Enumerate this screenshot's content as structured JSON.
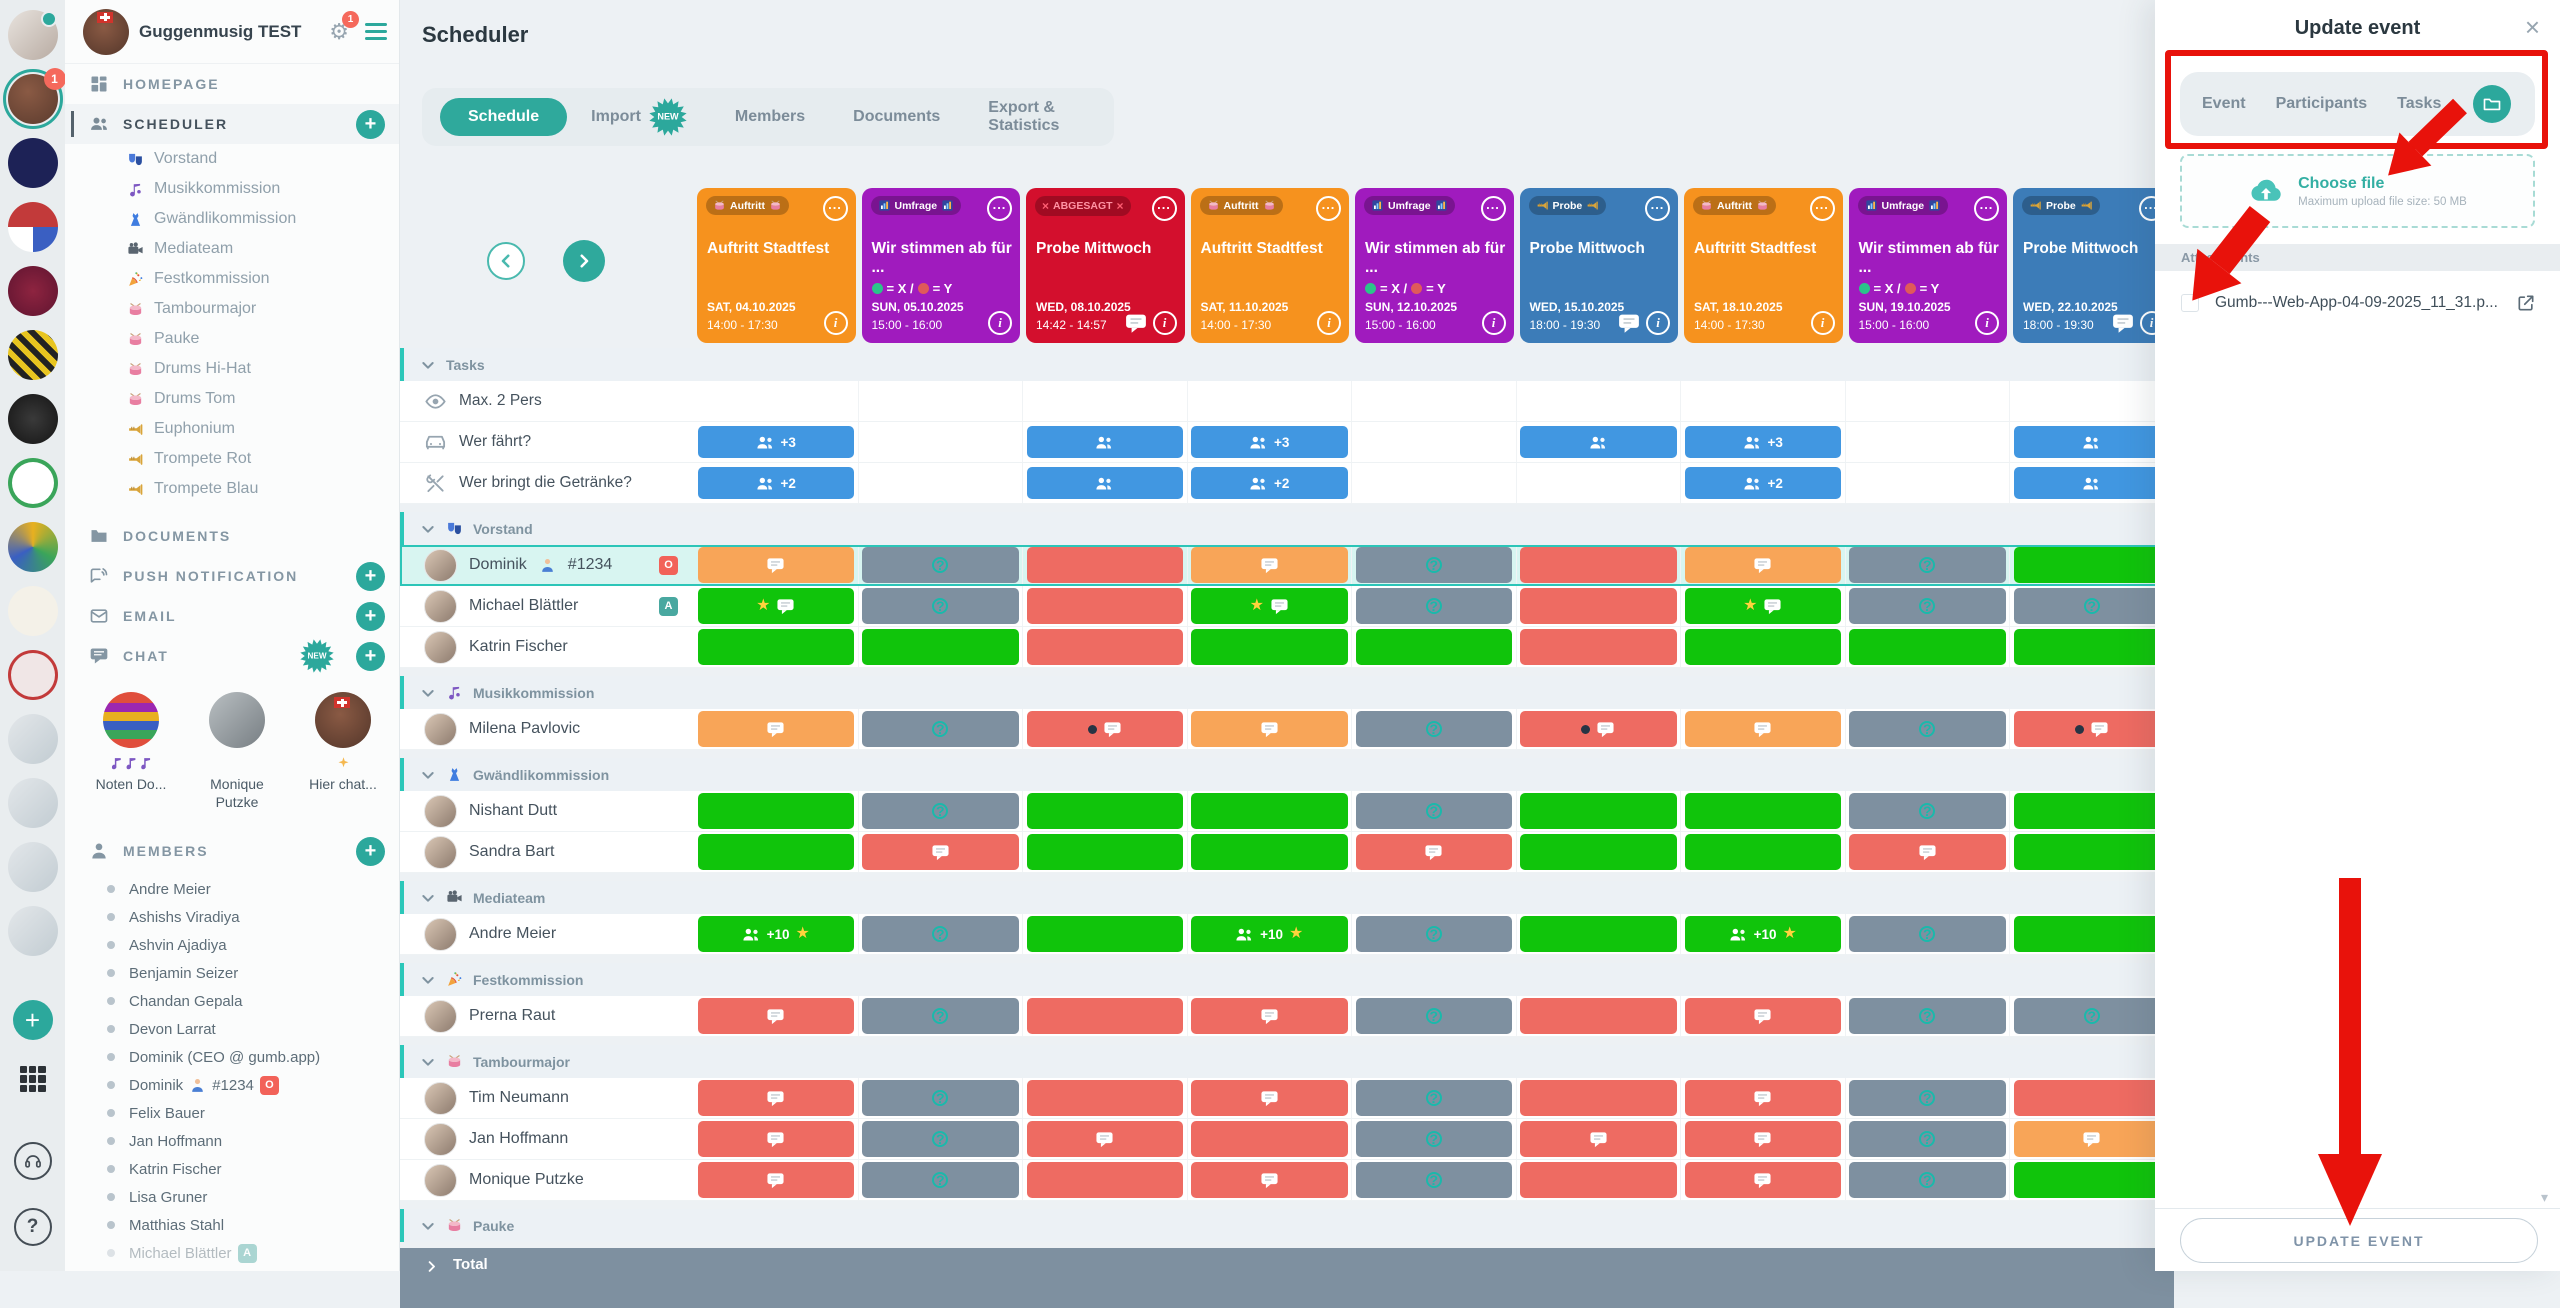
{
  "colors": {
    "accent_teal": "#2CA89C",
    "highlight_teal": "#2CC5B8",
    "annotation_red": "#E8120B",
    "card_orange": "#F6921E",
    "card_purple": "#A01BBE",
    "card_red": "#D30F2D",
    "card_blue": "#3C7CB8",
    "cell_green": "#10C40B",
    "cell_orange": "#F8A558",
    "cell_red": "#EE6B62",
    "cell_slate": "#7E90A0",
    "task_blue": "#4197E1",
    "total_bar": "#7E90A0"
  },
  "left_rail": {
    "workspace_badge_count": "1",
    "bottom_icons": [
      "add",
      "apps",
      "support",
      "help"
    ],
    "help_label": "?"
  },
  "sidebar": {
    "title": "Guggenmusig TEST",
    "notification_count": "1",
    "nav": {
      "homepage": "HOMEPAGE",
      "scheduler": "SCHEDULER",
      "documents": "DOCUMENTS",
      "push": "PUSH NOTIFICATION",
      "email": "EMAIL",
      "chat": "CHAT",
      "members": "MEMBERS"
    },
    "chat_new_badge": "NEW",
    "scheduler_groups": [
      {
        "label": "Vorstand",
        "icon": "masks"
      },
      {
        "label": "Musikkommission",
        "icon": "note"
      },
      {
        "label": "Gwändlikommission",
        "icon": "dress"
      },
      {
        "label": "Mediateam",
        "icon": "camera"
      },
      {
        "label": "Festkommission",
        "icon": "party"
      },
      {
        "label": "Tambourmajor",
        "icon": "drum"
      },
      {
        "label": "Pauke",
        "icon": "drum"
      },
      {
        "label": "Drums Hi-Hat",
        "icon": "drum"
      },
      {
        "label": "Drums Tom",
        "icon": "drum"
      },
      {
        "label": "Euphonium",
        "icon": "trumpet"
      },
      {
        "label": "Trompete Rot",
        "icon": "trumpet"
      },
      {
        "label": "Trompete Blau",
        "icon": "trumpet"
      }
    ],
    "chats": [
      {
        "name": "Noten Do...",
        "icon": "notes3",
        "avatar": "mosaic"
      },
      {
        "name": "Monique Putzke",
        "icon": "",
        "avatar": "photo"
      },
      {
        "name": "Hier chat...",
        "icon": "sparkle",
        "avatar": "clubimg"
      }
    ],
    "members": [
      {
        "name": "Andre Meier"
      },
      {
        "name": "Ashishs Viradiya"
      },
      {
        "name": "Ashvin Ajadiya"
      },
      {
        "name": "Benjamin Seizer"
      },
      {
        "name": "Chandan Gepala"
      },
      {
        "name": "Devon Larrat"
      },
      {
        "name": "Dominik (CEO @ gumb.app)"
      },
      {
        "name": "Dominik",
        "person_icon": true,
        "suffix": "#1234",
        "badge": "O"
      },
      {
        "name": "Felix Bauer"
      },
      {
        "name": "Jan Hoffmann"
      },
      {
        "name": "Katrin Fischer"
      },
      {
        "name": "Lisa Gruner"
      },
      {
        "name": "Matthias Stahl"
      },
      {
        "name": "Michael Blättler",
        "badge": "A",
        "faded": true
      }
    ]
  },
  "main": {
    "title": "Scheduler",
    "tabs": [
      {
        "label": "Schedule",
        "active": true
      },
      {
        "label": "Import",
        "new": true
      },
      {
        "label": "Members"
      },
      {
        "label": "Documents"
      },
      {
        "label": "Export & Statistics"
      }
    ],
    "import_new_badge": "NEW",
    "vote_legend": {
      "green": "= X /",
      "red": "= Y"
    },
    "events": [
      {
        "color": "orange",
        "badge": "Auftritt",
        "badge_icon": "drum",
        "title": "Auftritt Stadtfest",
        "date": "SAT, 04.10.2025",
        "time": "14:00 - 17:30",
        "chat": false
      },
      {
        "color": "purple",
        "badge": "Umfrage",
        "badge_icon": "chart",
        "title": "Wir stimmen ab für ...",
        "legend": true,
        "date": "SUN, 05.10.2025",
        "time": "15:00 - 16:00",
        "chat": false
      },
      {
        "color": "red",
        "badge": "ABGESAGT",
        "badge_icon": "x",
        "title": "Probe Mittwoch",
        "date": "WED, 08.10.2025",
        "time": "14:42 - 14:57",
        "chat": true
      },
      {
        "color": "orange",
        "badge": "Auftritt",
        "badge_icon": "drum",
        "title": "Auftritt Stadtfest",
        "date": "SAT, 11.10.2025",
        "time": "14:00 - 17:30",
        "chat": false
      },
      {
        "color": "purple",
        "badge": "Umfrage",
        "badge_icon": "chart",
        "title": "Wir stimmen ab für ...",
        "legend": true,
        "date": "SUN, 12.10.2025",
        "time": "15:00 - 16:00",
        "chat": false
      },
      {
        "color": "blue",
        "badge": "Probe",
        "badge_icon": "trumpet",
        "title": "Probe Mittwoch",
        "date": "WED, 15.10.2025",
        "time": "18:00 - 19:30",
        "chat": true
      },
      {
        "color": "orange",
        "badge": "Auftritt",
        "badge_icon": "drum",
        "title": "Auftritt Stadtfest",
        "date": "SAT, 18.10.2025",
        "time": "14:00 - 17:30",
        "chat": false
      },
      {
        "color": "purple",
        "badge": "Umfrage",
        "badge_icon": "chart",
        "title": "Wir stimmen ab für ...",
        "legend": true,
        "date": "SUN, 19.10.2025",
        "time": "15:00 - 16:00",
        "chat": false
      },
      {
        "color": "blue",
        "badge": "Probe",
        "badge_icon": "trumpet",
        "title": "Probe Mittwoch",
        "date": "WED, 22.10.2025",
        "time": "18:00 - 19:30",
        "chat": true
      }
    ],
    "tasks": {
      "header": "Tasks",
      "rows": [
        {
          "icon": "eye",
          "label": "Max. 2 Pers",
          "cells": [
            "",
            "",
            "",
            "",
            "",
            "",
            "",
            "",
            ""
          ]
        },
        {
          "icon": "car",
          "label": "Wer fährt?",
          "cells": [
            "blue:people,+3",
            "",
            "blue:people",
            "blue:people,+3",
            "",
            "blue:people",
            "blue:people,+3",
            "",
            "blue:people"
          ]
        },
        {
          "icon": "utensils",
          "label": "Wer bringt die Getränke?",
          "cells": [
            "blue:people,+2",
            "",
            "blue:people",
            "blue:people,+2",
            "",
            "",
            "blue:people,+2",
            "",
            "blue:people"
          ]
        }
      ]
    },
    "groups": [
      {
        "name": "Vorstand",
        "icon": "masks",
        "members": [
          {
            "name": "Dominik",
            "person_icon": true,
            "suffix": "#1234",
            "badge": "O",
            "highlight": true,
            "cells": [
              "orange:chat",
              "slate:q",
              "red:",
              "orange:chat",
              "slate:q",
              "red:",
              "orange:chat",
              "slate:q",
              "green:"
            ]
          },
          {
            "name": "Michael Blättler",
            "badge": "A",
            "cells": [
              "green:star,chat",
              "slate:q",
              "red:",
              "green:star,chat",
              "slate:q",
              "red:",
              "green:star,chat",
              "slate:q",
              "slate:q"
            ]
          },
          {
            "name": "Katrin Fischer",
            "cells": [
              "green:",
              "green:",
              "red:",
              "green:",
              "green:",
              "red:",
              "green:",
              "green:",
              "green:"
            ]
          }
        ]
      },
      {
        "name": "Musikkommission",
        "icon": "note",
        "members": [
          {
            "name": "Milena Pavlovic",
            "cells": [
              "orange:chat",
              "slate:q",
              "red:dot,chat",
              "orange:chat",
              "slate:q",
              "red:dot,chat",
              "orange:chat",
              "slate:q",
              "red:dot,chat"
            ]
          }
        ]
      },
      {
        "name": "Gwändlikommission",
        "icon": "dress",
        "members": [
          {
            "name": "Nishant Dutt",
            "cells": [
              "green:",
              "slate:q",
              "green:",
              "green:",
              "slate:q",
              "green:",
              "green:",
              "slate:q",
              "green:"
            ]
          },
          {
            "name": "Sandra Bart",
            "cells": [
              "green:",
              "red:chat",
              "green:",
              "green:",
              "red:chat",
              "green:",
              "green:",
              "red:chat",
              "green:"
            ]
          }
        ]
      },
      {
        "name": "Mediateam",
        "icon": "camera",
        "members": [
          {
            "name": "Andre Meier",
            "cells": [
              "green:people,+10,star",
              "slate:q",
              "green:",
              "green:people,+10,star",
              "slate:q",
              "green:",
              "green:people,+10,star",
              "slate:q",
              "green:"
            ]
          }
        ]
      },
      {
        "name": "Festkommission",
        "icon": "party",
        "members": [
          {
            "name": "Prerna Raut",
            "cells": [
              "red:chat",
              "slate:q",
              "red:",
              "red:chat",
              "slate:q",
              "red:",
              "red:chat",
              "slate:q",
              "slate:q"
            ]
          }
        ]
      },
      {
        "name": "Tambourmajor",
        "icon": "drum",
        "members": [
          {
            "name": "Tim Neumann",
            "cells": [
              "red:chat",
              "slate:q",
              "red:",
              "red:chat",
              "slate:q",
              "red:",
              "red:chat",
              "slate:q",
              "red:"
            ]
          },
          {
            "name": "Jan Hoffmann",
            "cells": [
              "red:chat",
              "slate:q",
              "red:chat",
              "red:",
              "slate:q",
              "red:chat",
              "red:chat",
              "slate:q",
              "orange:chat"
            ]
          },
          {
            "name": "Monique Putzke",
            "cells": [
              "red:chat",
              "slate:q",
              "red:",
              "red:chat",
              "slate:q",
              "red:",
              "red:chat",
              "slate:q",
              "green:"
            ]
          }
        ]
      },
      {
        "name": "Pauke",
        "icon": "drum",
        "members": []
      }
    ],
    "total_label": "Total"
  },
  "panel": {
    "title": "Update event",
    "tabs": [
      "Event",
      "Participants",
      "Tasks"
    ],
    "upload": {
      "choose": "Choose file",
      "hint": "Maximum upload file size: 50 MB"
    },
    "attachments_header": "Attachments",
    "attachment": {
      "filename": "Gumb---Web-App-04-09-2025_11_31.p..."
    },
    "update_button": "UPDATE EVENT"
  }
}
